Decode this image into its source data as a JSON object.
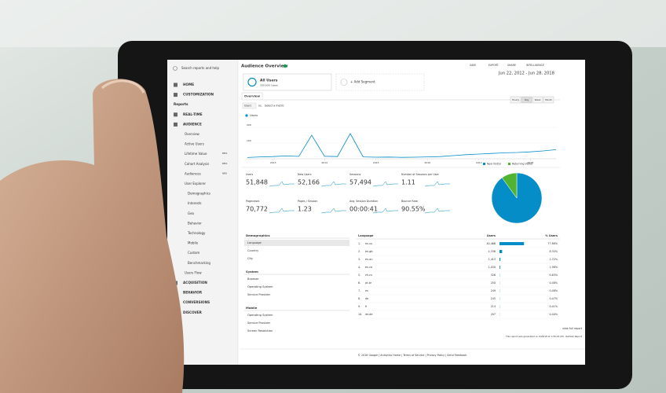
{
  "sidebar": {
    "search": "Search reports and help",
    "items": [
      {
        "label": "HOME"
      },
      {
        "label": "CUSTOMIZATION"
      },
      {
        "label": "Reports"
      },
      {
        "label": "REAL-TIME"
      },
      {
        "label": "AUDIENCE"
      },
      {
        "label": "Overview"
      },
      {
        "label": "Active Users"
      },
      {
        "label": "Lifetime Value",
        "badge": "BETA"
      },
      {
        "label": "Cohort Analysis",
        "badge": "BETA"
      },
      {
        "label": "Audiences",
        "badge": "NEW"
      },
      {
        "label": "User Explorer"
      },
      {
        "label": "Demographics"
      },
      {
        "label": "Interests"
      },
      {
        "label": "Geo"
      },
      {
        "label": "Behavior"
      },
      {
        "label": "Technology"
      },
      {
        "label": "Mobile"
      },
      {
        "label": "Custom"
      },
      {
        "label": "Benchmarking"
      },
      {
        "label": "Users Flow"
      },
      {
        "label": "ACQUISITION"
      },
      {
        "label": "BEHAVIOR"
      },
      {
        "label": "CONVERSIONS"
      },
      {
        "label": "DISCOVER"
      }
    ]
  },
  "header": {
    "title": "Audience Overview",
    "actions": [
      "SAVE",
      "EXPORT",
      "SHARE",
      "INTELLIGENCE"
    ],
    "date_range": "Jun 22, 2012 - Jun 28, 2018"
  },
  "segment": {
    "name": "All Users",
    "detail": "100.00% Users",
    "add": "+ Add Segment"
  },
  "tab": "Overview",
  "controls": {
    "metric": "Users",
    "vs": "vs.",
    "select": "Select a metric",
    "granularity": [
      "Hourly",
      "Day",
      "Week",
      "Month"
    ]
  },
  "chart_data": [
    {
      "type": "line",
      "x": [
        2012.5,
        2012.75,
        2013,
        2013.25,
        2013.5,
        2013.75,
        2014,
        2014.25,
        2014.5,
        2014.75,
        2015,
        2015.25,
        2015.5,
        2015.75,
        2016,
        2016.25,
        2016.5,
        2016.75,
        2017,
        2017.25,
        2017.5,
        2017.75,
        2018,
        2018.25,
        2018.5
      ],
      "series": [
        {
          "name": "Users",
          "color": "#058dc7",
          "values": [
            8,
            12,
            14,
            18,
            15,
            150,
            16,
            14,
            160,
            12,
            10,
            11,
            9,
            10,
            12,
            14,
            20,
            26,
            30,
            34,
            38,
            40,
            44,
            50,
            58
          ]
        }
      ],
      "xlim": [
        2012.47,
        2018.5
      ],
      "xticks": [
        2013,
        2014,
        2015,
        2016,
        2017,
        2018
      ],
      "ylim": [
        0,
        230
      ],
      "yticks": [
        100,
        200
      ],
      "grid": true
    },
    {
      "type": "pie",
      "categories": [
        "New Visitor",
        "Returning Visitor"
      ],
      "values": [
        90,
        10
      ],
      "colors": [
        "#058dc7",
        "#50b432"
      ]
    }
  ],
  "metrics": [
    {
      "label": "Users",
      "value": "51,848"
    },
    {
      "label": "New Users",
      "value": "52,166"
    },
    {
      "label": "Sessions",
      "value": "57,494"
    },
    {
      "label": "Number of Sessions per User",
      "value": "1.11"
    },
    {
      "label": "Pageviews",
      "value": "70,772"
    },
    {
      "label": "Pages / Session",
      "value": "1.23"
    },
    {
      "label": "Avg. Session Duration",
      "value": "00:00:41"
    },
    {
      "label": "Bounce Rate",
      "value": "90.55%"
    }
  ],
  "dimension_groups": [
    {
      "title": "Demographics",
      "items": [
        "Language",
        "Country",
        "City"
      ]
    },
    {
      "title": "System",
      "items": [
        "Browser",
        "Operating System",
        "Service Provider"
      ]
    },
    {
      "title": "Mobile",
      "items": [
        "Operating System",
        "Service Provider",
        "Screen Resolution"
      ]
    }
  ],
  "language_table": {
    "headers": [
      "Language",
      "Users",
      "% Users"
    ],
    "rows": [
      [
        "1.",
        "en-us",
        "40,466",
        "77.88%"
      ],
      [
        "2.",
        "en-gb",
        "4,336",
        "8.35%"
      ],
      [
        "3.",
        "en-au",
        "1,413",
        "2.72%"
      ],
      [
        "4.",
        "en-ca",
        "1,030",
        "1.98%"
      ],
      [
        "5.",
        "zh-cn",
        "326",
        "0.63%"
      ],
      [
        "6.",
        "pt-br",
        "250",
        "0.48%"
      ],
      [
        "7.",
        "es",
        "249",
        "0.48%"
      ],
      [
        "8.",
        "de",
        "245",
        "0.47%"
      ],
      [
        "9.",
        "fr",
        "214",
        "0.41%"
      ],
      [
        "10.",
        "de-de",
        "207",
        "0.40%"
      ]
    ],
    "link": "view full report"
  },
  "report_note": "This report was generated on 6/28/18 at 1:56:24 AM - Refresh Report",
  "footer": "© 2018 Google | Analytics Home | Terms of Service | Privacy Policy | Send Feedback"
}
